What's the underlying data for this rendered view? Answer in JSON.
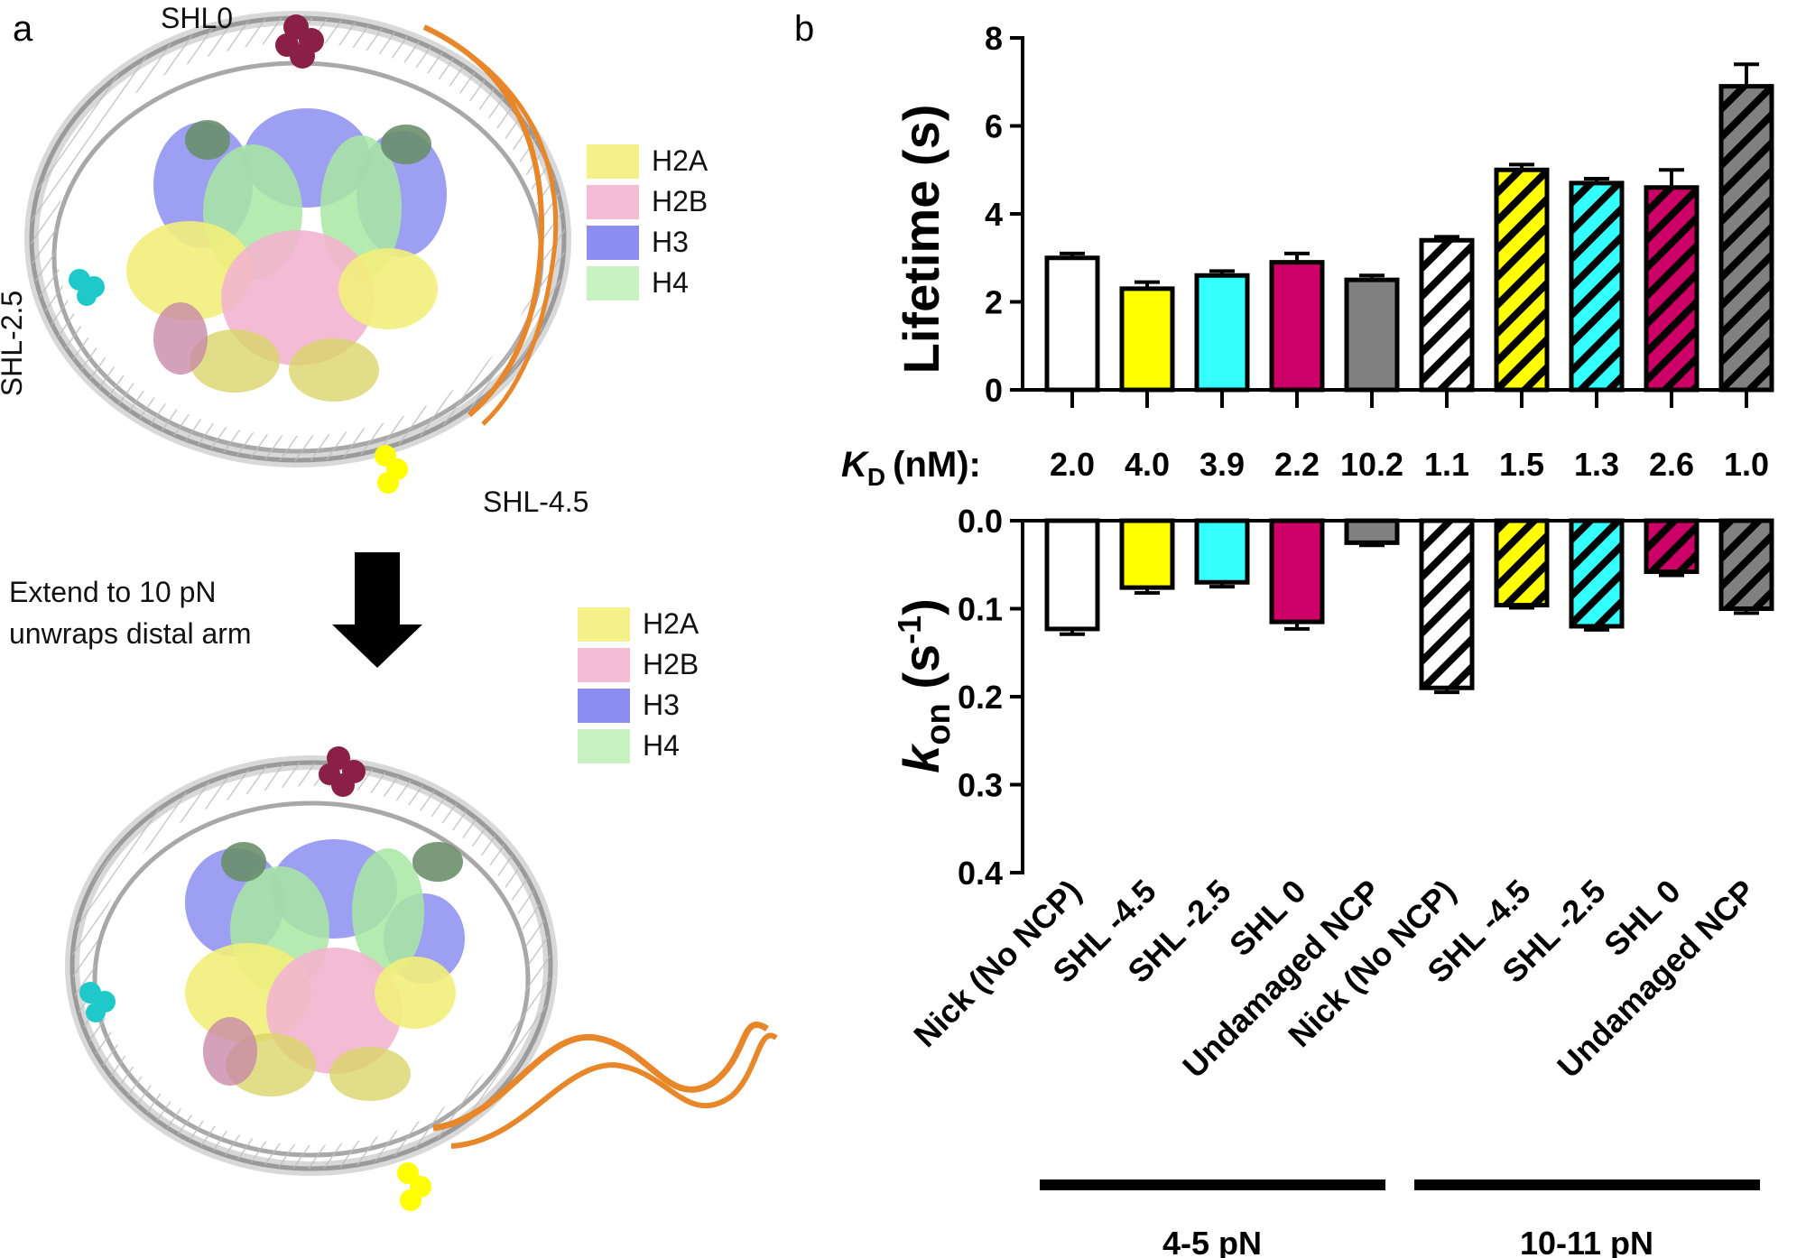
{
  "panel_a": {
    "letter": "a",
    "top_structure": {
      "site_labels": {
        "shl0": "SHL0",
        "shl_m2_5": "SHL-2.5",
        "shl_m4_5": "SHL-4.5"
      },
      "legend": [
        {
          "label": "H2A",
          "color": "#f4f08a"
        },
        {
          "label": "H2B",
          "color": "#f5bcd6"
        },
        {
          "label": "H3",
          "color": "#8b8ef0"
        },
        {
          "label": "H4",
          "color": "#c9f2c2"
        }
      ]
    },
    "arrow_caption": {
      "line1": "Extend to 10 pN",
      "line2": "unwraps distal arm"
    },
    "bottom_structure": {
      "legend": [
        {
          "label": "H2A",
          "color": "#f4f08a"
        },
        {
          "label": "H2B",
          "color": "#f5bcd6"
        },
        {
          "label": "H3",
          "color": "#8b8ef0"
        },
        {
          "label": "H4",
          "color": "#c9f2c2"
        }
      ]
    }
  },
  "panel_b": {
    "letter": "b"
  },
  "kd_row": {
    "label": "K",
    "label_sub": "D",
    "label_unit": "(nM):",
    "values": [
      "2.0",
      "4.0",
      "3.9",
      "2.2",
      "10.2",
      "1.1",
      "1.5",
      "1.3",
      "2.6",
      "1.0"
    ]
  },
  "groups": [
    {
      "label": "4-5 pN"
    },
    {
      "label": "10-11 pN"
    }
  ],
  "chart_data": [
    {
      "type": "bar",
      "title": "",
      "ylabel": "Lifetime (s)",
      "ylim": [
        0,
        8
      ],
      "yticks": [
        "0",
        "2",
        "4",
        "6",
        "8"
      ],
      "categories": [
        "Nick (No NCP)",
        "SHL -4.5",
        "SHL -2.5",
        "SHL 0",
        "Undamaged NCP",
        "Nick (No NCP)",
        "SHL -4.5",
        "SHL -2.5",
        "SHL 0",
        "Undamaged NCP"
      ],
      "values": [
        3.0,
        2.3,
        2.6,
        2.9,
        2.5,
        3.4,
        5.0,
        4.7,
        4.6,
        6.9
      ],
      "errors": [
        0.1,
        0.15,
        0.1,
        0.2,
        0.1,
        0.08,
        0.12,
        0.1,
        0.4,
        0.5
      ],
      "colors": [
        "#ffffff",
        "#ffff00",
        "#33ffff",
        "#cc0066",
        "#808080",
        "#ffffff",
        "#ffff00",
        "#33ffff",
        "#cc0066",
        "#808080"
      ],
      "hatched": [
        false,
        false,
        false,
        false,
        false,
        true,
        true,
        true,
        true,
        true
      ]
    },
    {
      "type": "bar",
      "title": "",
      "ylabel": "k",
      "ylabel_sub": "on",
      "ylabel_unit": " (s",
      "ylabel_sup": "-1",
      "ylabel_close": ")",
      "ylim": [
        0,
        0.4
      ],
      "inverted": true,
      "yticks": [
        "0.0",
        "0.1",
        "0.2",
        "0.3",
        "0.4"
      ],
      "categories": [
        "Nick (No NCP)",
        "SHL -4.5",
        "SHL -2.5",
        "SHL 0",
        "Undamaged NCP",
        "Nick (No NCP)",
        "SHL -4.5",
        "SHL -2.5",
        "SHL 0",
        "Undamaged NCP"
      ],
      "values": [
        0.123,
        0.076,
        0.07,
        0.115,
        0.025,
        0.19,
        0.096,
        0.12,
        0.058,
        0.1
      ],
      "errors": [
        0.006,
        0.006,
        0.005,
        0.008,
        0.003,
        0.005,
        0.003,
        0.004,
        0.004,
        0.005
      ],
      "colors": [
        "#ffffff",
        "#ffff00",
        "#33ffff",
        "#cc0066",
        "#808080",
        "#ffffff",
        "#ffff00",
        "#33ffff",
        "#cc0066",
        "#808080"
      ],
      "hatched": [
        false,
        false,
        false,
        false,
        false,
        true,
        true,
        true,
        true,
        true
      ]
    }
  ]
}
